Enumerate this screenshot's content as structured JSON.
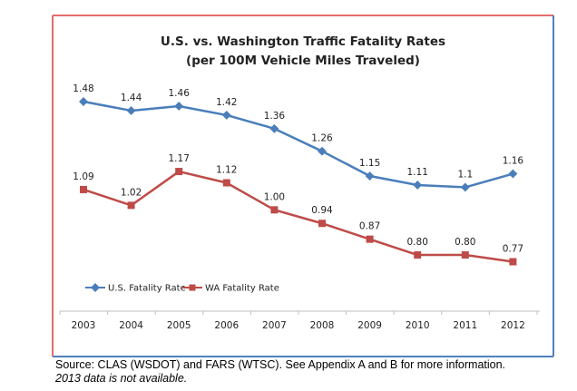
{
  "chart_data": {
    "type": "line",
    "title": "U.S. vs. Washington Traffic Fatality Rates",
    "subtitle": "(per 100M Vehicle Miles Traveled)",
    "xlabel": "",
    "ylabel": "",
    "categories": [
      "2003",
      "2004",
      "2005",
      "2006",
      "2007",
      "2008",
      "2009",
      "2010",
      "2011",
      "2012"
    ],
    "series": [
      {
        "name": "U.S. Fatality Rate",
        "color": "#4a7ebb",
        "marker": "diamond",
        "values": [
          1.48,
          1.44,
          1.46,
          1.42,
          1.36,
          1.26,
          1.15,
          1.11,
          1.1,
          1.16
        ],
        "labels": [
          "1.48",
          "1.44",
          "1.46",
          "1.42",
          "1.36",
          "1.26",
          "1.15",
          "1.11",
          "1.1",
          "1.16"
        ]
      },
      {
        "name": "WA Fatality Rate",
        "color": "#be4b48",
        "marker": "square",
        "values": [
          1.09,
          1.02,
          1.17,
          1.12,
          1.0,
          0.94,
          0.87,
          0.8,
          0.8,
          0.77
        ],
        "labels": [
          "1.09",
          "1.02",
          "1.17",
          "1.12",
          "1.00",
          "0.94",
          "0.87",
          "0.80",
          "0.80",
          "0.77"
        ]
      }
    ],
    "ylim": [
      0.6,
      1.6
    ],
    "grid": false,
    "legend": "bottom-left",
    "frame_colors": {
      "left": "#e46c69",
      "top": "#e46c69",
      "right": "#4f81bd",
      "bottom": "#4f81bd"
    }
  },
  "footnote": {
    "source": "Source: CLAS (WSDOT) and FARS (WTSC). See Appendix A and B for more information.",
    "availability": "2013 data is not available."
  }
}
